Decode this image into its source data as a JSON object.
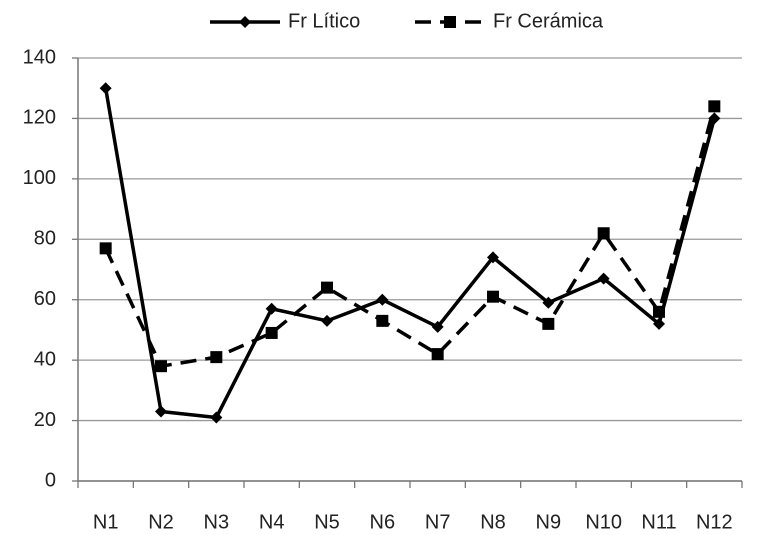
{
  "chart_data": {
    "type": "line",
    "categories": [
      "N1",
      "N2",
      "N3",
      "N4",
      "N5",
      "N6",
      "N7",
      "N8",
      "N9",
      "N10",
      "N11",
      "N12"
    ],
    "series": [
      {
        "name": "Fr Lítico",
        "color": "#000000",
        "marker": "diamond",
        "line_style": "solid",
        "values": [
          130,
          23,
          21,
          57,
          53,
          60,
          51,
          74,
          59,
          67,
          52,
          120
        ]
      },
      {
        "name": "Fr Cerámica",
        "color": "#000000",
        "marker": "square",
        "line_style": "dashed",
        "values": [
          77,
          38,
          41,
          49,
          64,
          53,
          42,
          61,
          52,
          82,
          56,
          124
        ]
      }
    ],
    "ylim": [
      0,
      140
    ],
    "yticks": [
      0,
      20,
      40,
      60,
      80,
      100,
      120,
      140
    ],
    "grid": true,
    "legend": "top"
  }
}
